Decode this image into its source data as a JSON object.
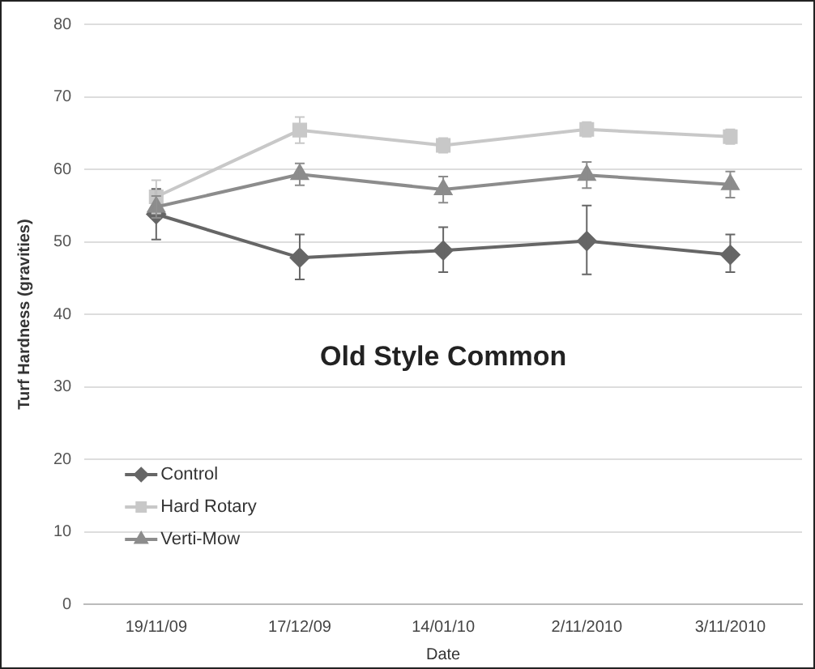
{
  "chart_data": {
    "type": "line",
    "title": "Old Style Common",
    "xlabel": "Date",
    "ylabel": "Turf Hardness (gravities)",
    "categories": [
      "19/11/09",
      "17/12/09",
      "14/01/10",
      "2/11/2010",
      "3/11/2010"
    ],
    "series": [
      {
        "name": "Control",
        "color": "#666666",
        "marker": "diamond",
        "values": [
          53.8,
          47.8,
          48.8,
          50.1,
          48.2
        ],
        "errors": [
          3.5,
          [
            44.8,
            51
          ],
          [
            45.8,
            52
          ],
          [
            45.5,
            55
          ],
          [
            45.8,
            51
          ]
        ]
      },
      {
        "name": "Hard Rotary",
        "color": "#c8c8c8",
        "marker": "square",
        "values": [
          56.2,
          65.4,
          63.3,
          65.5,
          64.5
        ],
        "errors": [
          2.3,
          1.8,
          1,
          1,
          1
        ]
      },
      {
        "name": "Verti-Mow",
        "color": "#8c8c8c",
        "marker": "triangle",
        "values": [
          54.8,
          59.3,
          57.2,
          59.2,
          57.9
        ],
        "errors": [
          1.5,
          1.5,
          1.8,
          1.8,
          1.8
        ]
      }
    ],
    "ylim": [
      0,
      80
    ],
    "yticks": [
      0,
      10,
      20,
      30,
      40,
      50,
      60,
      70,
      80
    ],
    "grid": "y",
    "legend": "bottom left",
    "line_style": "solid"
  }
}
